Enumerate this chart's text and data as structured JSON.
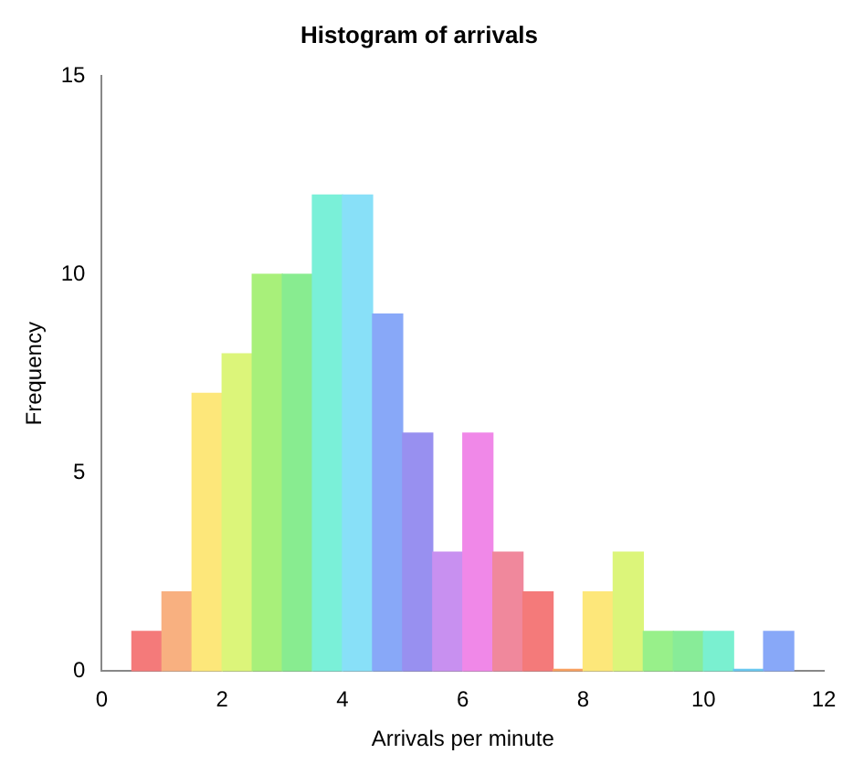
{
  "chart_data": {
    "type": "histogram",
    "title": "Histogram of arrivals",
    "xlabel": "Arrivals per minute",
    "ylabel": "Frequency",
    "bins": [
      0.5,
      1,
      1.5,
      2,
      2.5,
      3,
      3.5,
      4,
      4.5,
      5,
      5.5,
      6,
      6.5,
      7,
      7.5,
      8,
      8.5,
      9,
      9.5,
      10,
      10.5,
      11,
      11.5
    ],
    "values": [
      1,
      2,
      7,
      8,
      10,
      10,
      12,
      12,
      9,
      6,
      3,
      6,
      3,
      2,
      0,
      2,
      3,
      1,
      1,
      1,
      0,
      1
    ],
    "colors": [
      "#f47a7a",
      "#f8b080",
      "#fde77a",
      "#dcf57a",
      "#a8f07a",
      "#88ec90",
      "#7af0d8",
      "#88e0f8",
      "#88a8f8",
      "#9890f0",
      "#c890f0",
      "#f088e8",
      "#f0889c",
      "#f47a7a",
      "#f8a060",
      "#fde77a",
      "#dcf57a",
      "#98f08a",
      "#88ec98",
      "#7af0d0",
      "#6ac8f0",
      "#88a8f8"
    ],
    "xlim": [
      0,
      12
    ],
    "xticks": [
      0,
      2,
      4,
      6,
      8,
      10,
      12
    ],
    "ylim": [
      0,
      15
    ],
    "yticks": [
      0,
      5,
      10,
      15
    ],
    "grid": false,
    "legend": false
  }
}
